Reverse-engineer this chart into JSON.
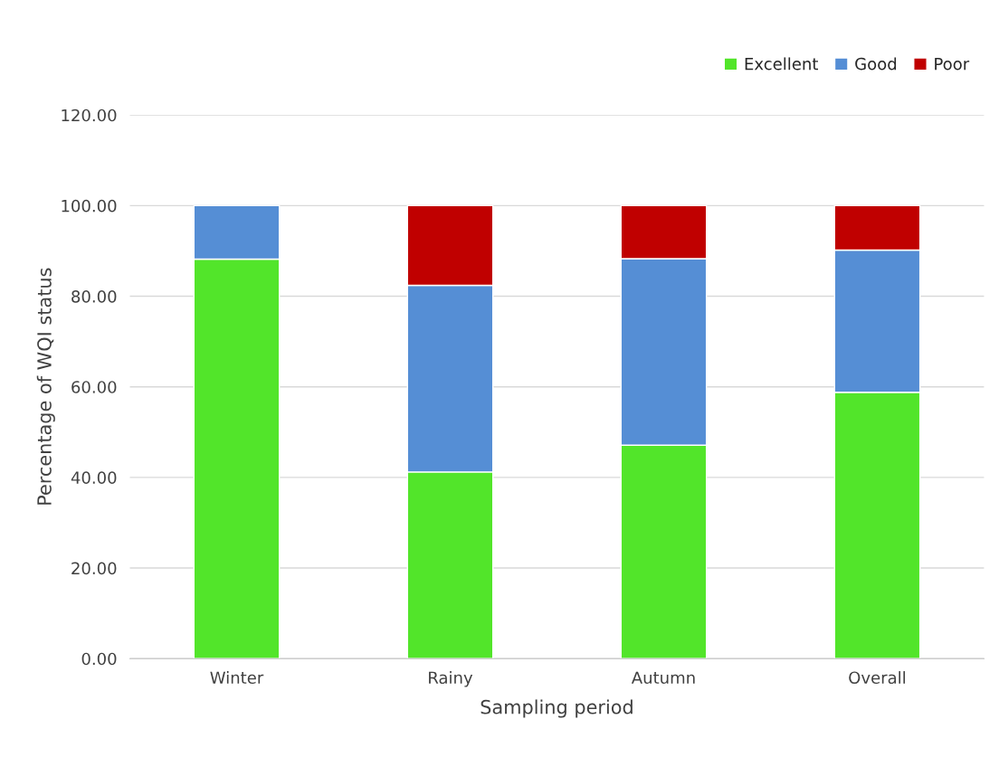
{
  "chart_data": {
    "type": "bar",
    "stacked": true,
    "xlabel": "Sampling period",
    "ylabel": "Percentage of WQI status",
    "categories": [
      "Winter",
      "Rainy",
      "Autumn",
      "Overall"
    ],
    "series": [
      {
        "name": "Excellent",
        "color": "#52e52a",
        "values": [
          88.2,
          41.2,
          47.1,
          58.8
        ]
      },
      {
        "name": "Good",
        "color": "#558ed5",
        "values": [
          11.8,
          41.2,
          41.2,
          31.4
        ]
      },
      {
        "name": "Poor",
        "color": "#c00000",
        "values": [
          null,
          17.6,
          11.7,
          9.8
        ]
      }
    ],
    "ylim": [
      0,
      120
    ],
    "yticks": [
      {
        "value": 0,
        "label": "0.00"
      },
      {
        "value": 20,
        "label": "20.00"
      },
      {
        "value": 40,
        "label": "40.00"
      },
      {
        "value": 60,
        "label": "60.00"
      },
      {
        "value": 80,
        "label": "80.00"
      },
      {
        "value": 100,
        "label": "100.00"
      },
      {
        "value": 120,
        "label": "120.00"
      }
    ],
    "grid": "y",
    "legend": "top right"
  }
}
